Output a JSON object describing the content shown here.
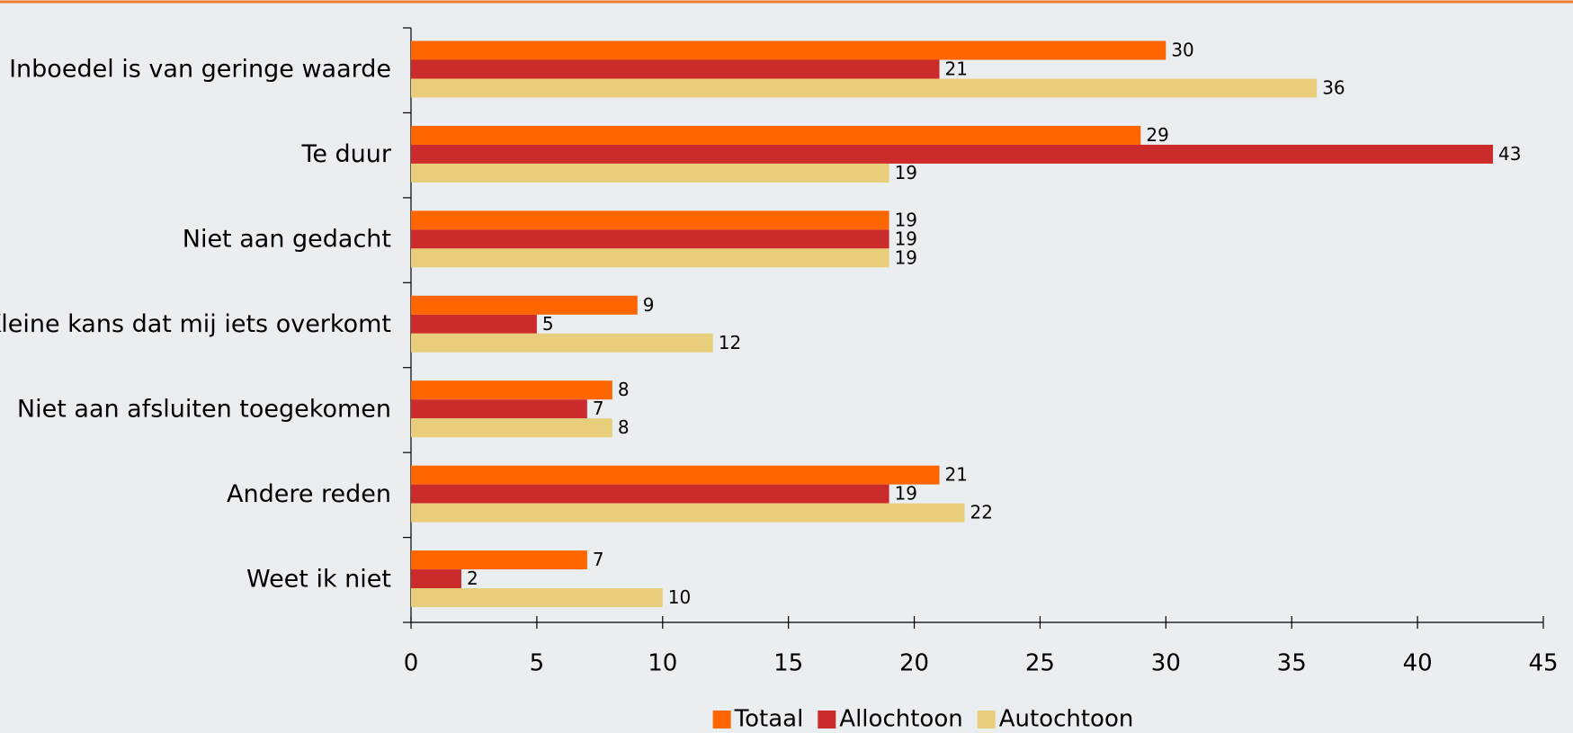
{
  "chart_data": {
    "type": "bar",
    "orientation": "horizontal",
    "categories": [
      "Inboedel is van geringe waarde",
      "Te duur",
      "Niet aan gedacht",
      "Kleine kans dat mij iets overkomt",
      "Niet aan afsluiten toegekomen",
      "Andere reden",
      "Weet ik niet"
    ],
    "series": [
      {
        "name": "Totaal",
        "color": "#ff6600",
        "values": [
          30,
          29,
          19,
          9,
          8,
          21,
          7
        ]
      },
      {
        "name": "Allochtoon",
        "color": "#cc2b2b",
        "values": [
          21,
          43,
          19,
          5,
          7,
          19,
          2
        ]
      },
      {
        "name": "Autochtoon",
        "color": "#e8cd7a",
        "values": [
          36,
          19,
          19,
          12,
          8,
          22,
          10
        ]
      }
    ],
    "xlim": [
      0,
      45
    ],
    "xticks": [
      0,
      5,
      10,
      15,
      20,
      25,
      30,
      35,
      40,
      45
    ],
    "legend": "bottom"
  }
}
